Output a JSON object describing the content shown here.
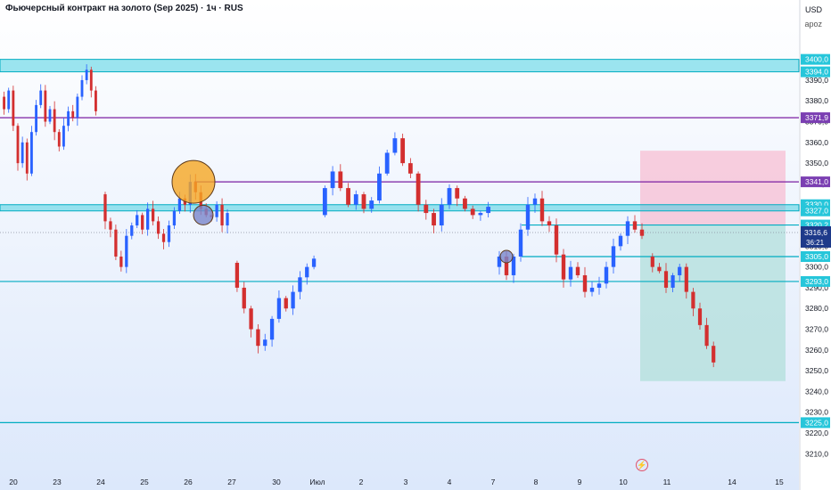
{
  "header": {
    "title": "Фьючерсный контракт на золото (Sep 2025) · 1ч · RUS",
    "currency": "USD",
    "user": "apoz"
  },
  "colors": {
    "up": "#2962ff",
    "down": "#d32f2f",
    "zone": "#4dd0e1",
    "purple_line": "#7b1fa2",
    "cyan_line": "#26a69a",
    "stop_zone": "#f8bbd0",
    "target_zone": "#b2dfdb"
  },
  "chart_data": {
    "type": "candlestick",
    "ylim": [
      3205,
      3408
    ],
    "y_ticks": [
      3210,
      3220,
      3230,
      3240,
      3250,
      3260,
      3270,
      3280,
      3290,
      3300,
      3310,
      3320,
      3330,
      3340,
      3350,
      3360,
      3370,
      3380,
      3390
    ],
    "y_tick_labels": [
      "3210,0",
      "3220,0",
      "3230,0",
      "3240,0",
      "3250,0",
      "3260,0",
      "3270,0",
      "3280,0",
      "3290,0",
      "3300,0",
      "3310,0",
      "3320,0",
      "3330,0",
      "3340,0",
      "3350,0",
      "3360,0",
      "3370,0",
      "3380,0",
      "3390,0"
    ],
    "x_labels": [
      "20",
      "23",
      "24",
      "25",
      "26",
      "27",
      "30",
      "Июл",
      "2",
      "3",
      "4",
      "7",
      "8",
      "9",
      "10",
      "11",
      "14",
      "15"
    ],
    "zones": [
      {
        "low": 3394.0,
        "high": 3400.0,
        "labels": [
          "3400,0",
          "3394,0"
        ]
      },
      {
        "low": 3327.0,
        "high": 3330.0,
        "labels": [
          "3330,0",
          "3327,0"
        ]
      }
    ],
    "levels": [
      {
        "value": 3371.9,
        "label": "3371,9",
        "color": "purple"
      },
      {
        "value": 3341.0,
        "label": "3341,0",
        "color": "purple"
      },
      {
        "value": 3320.2,
        "label": "3320,2",
        "color": "cyan"
      },
      {
        "value": 3305.0,
        "label": "3305,0",
        "color": "cyan"
      },
      {
        "value": 3293.0,
        "label": "3293,0",
        "color": "cyan"
      },
      {
        "value": 3225.0,
        "label": "3225,0",
        "color": "cyan"
      }
    ],
    "current_price": {
      "value": 3316.6,
      "label": "3316,6",
      "timer": "36:21"
    },
    "position": {
      "entry": 3320,
      "stop": 3356,
      "target": 3245
    },
    "price_path": [
      [
        3382,
        3376,
        3385,
        3368,
        3350,
        3360,
        3345,
        3365,
        3378,
        3385,
        3370,
        3376,
        3365,
        3358,
        3368,
        3375,
        3372,
        3382,
        3390,
        3395,
        3385,
        3375
      ],
      [
        3335,
        3322,
        3318,
        3305,
        3300,
        3315,
        3320,
        3325,
        3318,
        3328,
        3322,
        3316,
        3312,
        3320,
        3327,
        3333,
        3330,
        3341,
        3336,
        3328,
        3325,
        3324,
        3330,
        3320,
        3326
      ],
      [
        3302,
        3290,
        3280,
        3270,
        3262,
        3265,
        3275,
        3285,
        3280,
        3288,
        3295,
        3300,
        3304
      ],
      [
        3325,
        3338,
        3346,
        3338,
        3330,
        3335,
        3328,
        3332,
        3345,
        3355,
        3362,
        3350,
        3345,
        3330,
        3326,
        3320,
        3330,
        3338,
        3333,
        3328,
        3325,
        3326,
        3329
      ],
      [
        3300,
        3305,
        3296,
        3305,
        3318,
        3330,
        3333,
        3322,
        3320,
        3306,
        3294,
        3300,
        3296,
        3288,
        3290,
        3292,
        3300,
        3310,
        3315,
        3322,
        3318,
        3315
      ],
      [
        3305,
        3300,
        3298,
        3290,
        3296,
        3300,
        3288,
        3280,
        3272,
        3262,
        3254
      ]
    ],
    "markers": [
      {
        "label": "orange circle",
        "color": "#f5a623",
        "price": 3341
      },
      {
        "label": "blue circle",
        "color": "#7986cb",
        "price": 3325
      },
      {
        "label": "small blue circle",
        "color": "#7986cb",
        "price": 3305
      }
    ]
  }
}
